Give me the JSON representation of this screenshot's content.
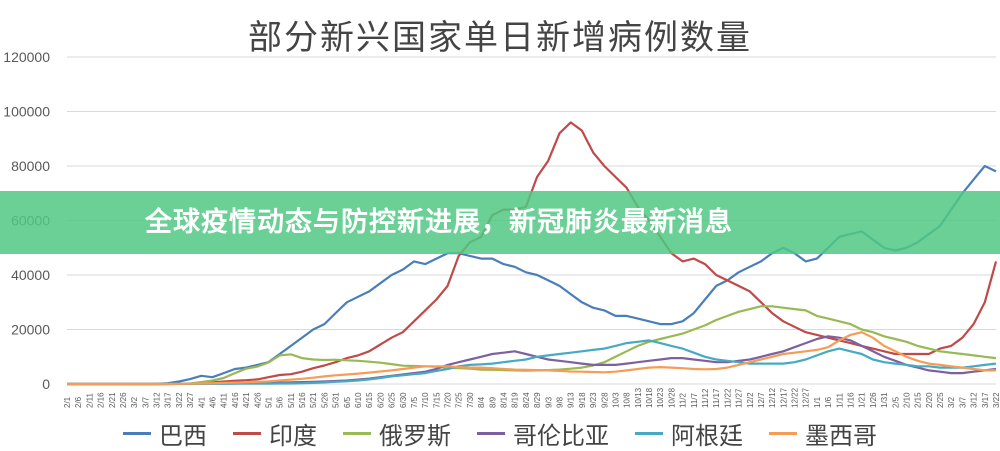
{
  "banner": {
    "text": "全球疫情动态与防控新进展，新冠肺炎最新消息"
  },
  "chart_data": {
    "type": "line",
    "title": "部分新兴国家单日新增病例数量",
    "xlabel": "",
    "ylabel": "",
    "ylim": [
      0,
      120000
    ],
    "yticks": [
      "0",
      "20000",
      "40000",
      "60000",
      "80000",
      "100000",
      "120000"
    ],
    "x": [
      "2/1",
      "2/6",
      "2/11",
      "2/16",
      "2/21",
      "2/26",
      "3/2",
      "3/7",
      "3/12",
      "3/17",
      "3/22",
      "3/27",
      "4/1",
      "4/6",
      "4/11",
      "4/16",
      "4/21",
      "4/26",
      "5/1",
      "5/6",
      "5/11",
      "5/16",
      "5/21",
      "5/26",
      "5/31",
      "6/5",
      "6/10",
      "6/15",
      "6/20",
      "6/25",
      "6/30",
      "7/5",
      "7/10",
      "7/15",
      "7/20",
      "7/25",
      "7/30",
      "8/4",
      "8/9",
      "8/14",
      "8/19",
      "8/24",
      "8/29",
      "9/3",
      "9/8",
      "9/13",
      "9/18",
      "9/23",
      "9/28",
      "10/3",
      "10/8",
      "10/13",
      "10/18",
      "10/23",
      "10/28",
      "11/2",
      "11/7",
      "11/12",
      "11/17",
      "11/22",
      "11/27",
      "12/2",
      "12/7",
      "12/12",
      "12/17",
      "12/22",
      "12/27",
      "1/1",
      "1/6",
      "1/11",
      "1/16",
      "1/21",
      "1/26",
      "1/31",
      "2/5",
      "2/10",
      "2/15",
      "2/20",
      "2/25",
      "3/2",
      "3/7",
      "3/12",
      "3/17",
      "3/22"
    ],
    "series": [
      {
        "name": "巴西",
        "color": "#4a7ebb",
        "values": [
          0,
          0,
          0,
          0,
          0,
          0,
          0,
          0,
          50,
          300,
          900,
          1800,
          3000,
          2500,
          4000,
          5500,
          6000,
          7000,
          8000,
          11000,
          14000,
          17000,
          20000,
          22000,
          26000,
          30000,
          32000,
          34000,
          37000,
          40000,
          42000,
          45000,
          44000,
          46000,
          48000,
          48000,
          47000,
          46000,
          46000,
          44000,
          43000,
          41000,
          40000,
          38000,
          36000,
          33000,
          30000,
          28000,
          27000,
          25000,
          25000,
          24000,
          23000,
          22000,
          22000,
          23000,
          26000,
          31000,
          36000,
          38000,
          41000,
          43000,
          45000,
          48000,
          50000,
          48000,
          45000,
          46000,
          50000,
          54000,
          55000,
          56000,
          53000,
          50000,
          49000,
          50000,
          52000,
          55000,
          58000,
          64000,
          70000,
          75000,
          80000,
          78000
        ]
      },
      {
        "name": "印度",
        "color": "#be4b48",
        "values": [
          0,
          0,
          0,
          0,
          0,
          0,
          0,
          0,
          5,
          20,
          60,
          90,
          300,
          600,
          900,
          1200,
          1400,
          1700,
          2500,
          3300,
          3600,
          4500,
          5800,
          6800,
          8000,
          9500,
          10500,
          12000,
          14500,
          17000,
          19000,
          23000,
          27000,
          31000,
          36000,
          47000,
          52000,
          54000,
          62000,
          64000,
          64000,
          65000,
          76000,
          82000,
          92000,
          96000,
          93000,
          85000,
          80000,
          76000,
          72000,
          65000,
          60000,
          54000,
          48000,
          45000,
          46000,
          44000,
          40000,
          38000,
          36000,
          34000,
          30000,
          26000,
          23000,
          21000,
          19000,
          18000,
          17000,
          16000,
          15000,
          14000,
          13000,
          12000,
          11000,
          11000,
          11000,
          11000,
          13000,
          14000,
          17000,
          22000,
          30000,
          45000
        ]
      },
      {
        "name": "俄罗斯",
        "color": "#98b954",
        "values": [
          0,
          0,
          0,
          0,
          0,
          0,
          0,
          0,
          0,
          20,
          60,
          180,
          700,
          1300,
          2200,
          4000,
          5600,
          6400,
          7900,
          10500,
          10900,
          9500,
          9000,
          8800,
          8900,
          8700,
          8500,
          8200,
          7800,
          7300,
          6700,
          6600,
          6500,
          6300,
          6000,
          5800,
          5600,
          5300,
          5200,
          5100,
          5000,
          4900,
          5000,
          5100,
          5300,
          5600,
          6000,
          6800,
          8000,
          10000,
          12000,
          14000,
          15500,
          16500,
          17500,
          18500,
          20000,
          21500,
          23500,
          25000,
          26500,
          27500,
          28500,
          28500,
          28000,
          27500,
          27000,
          25000,
          24000,
          23000,
          22000,
          20000,
          19000,
          17500,
          16500,
          15500,
          14000,
          13000,
          12000,
          11500,
          11000,
          10500,
          10000,
          9500
        ]
      },
      {
        "name": "哥伦比亚",
        "color": "#7d60a0",
        "values": [
          0,
          0,
          0,
          0,
          0,
          0,
          0,
          0,
          0,
          10,
          30,
          60,
          90,
          120,
          150,
          200,
          250,
          300,
          400,
          500,
          600,
          700,
          800,
          900,
          1100,
          1300,
          1600,
          2000,
          2500,
          3000,
          3500,
          4000,
          4500,
          5500,
          7000,
          8000,
          9000,
          10000,
          11000,
          11500,
          12000,
          11000,
          10000,
          9000,
          8500,
          8000,
          7500,
          7000,
          7000,
          7000,
          7500,
          8000,
          8500,
          9000,
          9500,
          9500,
          9000,
          8500,
          8000,
          8000,
          8500,
          9000,
          10000,
          11000,
          12000,
          13500,
          15000,
          16500,
          17500,
          17000,
          16000,
          14000,
          12000,
          10000,
          8500,
          7000,
          6000,
          5000,
          4500,
          4000,
          4000,
          4500,
          5000,
          5500
        ]
      },
      {
        "name": "阿根廷",
        "color": "#46aac4",
        "values": [
          0,
          0,
          0,
          0,
          0,
          0,
          0,
          0,
          0,
          10,
          30,
          60,
          80,
          100,
          110,
          120,
          130,
          140,
          150,
          180,
          200,
          260,
          400,
          600,
          800,
          1000,
          1300,
          1700,
          2200,
          2800,
          3200,
          3600,
          4000,
          4800,
          5500,
          6500,
          7000,
          7200,
          7500,
          8000,
          8500,
          9000,
          10000,
          10500,
          11000,
          11500,
          12000,
          12500,
          13000,
          14000,
          15000,
          15500,
          16000,
          15000,
          14000,
          13000,
          11500,
          10000,
          9000,
          8500,
          8000,
          7500,
          7500,
          7500,
          7500,
          8000,
          9000,
          10500,
          12000,
          13000,
          12000,
          11000,
          9000,
          8000,
          7500,
          7000,
          6500,
          6500,
          6000,
          6000,
          6000,
          6500,
          7000,
          7500
        ]
      },
      {
        "name": "墨西哥",
        "color": "#f59d56",
        "values": [
          0,
          0,
          0,
          0,
          0,
          0,
          0,
          0,
          0,
          10,
          40,
          100,
          200,
          300,
          400,
          500,
          650,
          800,
          1000,
          1300,
          1600,
          1900,
          2300,
          2800,
          3200,
          3500,
          3800,
          4200,
          4600,
          5000,
          5500,
          6000,
          6500,
          6500,
          6500,
          6200,
          6000,
          6000,
          5800,
          5500,
          5300,
          5200,
          5100,
          5000,
          4800,
          4600,
          4500,
          4400,
          4300,
          4500,
          5000,
          5500,
          6000,
          6200,
          6000,
          5800,
          5500,
          5400,
          5500,
          6000,
          7000,
          8000,
          9000,
          10000,
          11000,
          11500,
          12000,
          12500,
          13500,
          16000,
          18000,
          19000,
          17000,
          14000,
          12000,
          10000,
          8500,
          7500,
          7000,
          6500,
          6000,
          5500,
          5000,
          5000
        ]
      }
    ]
  }
}
